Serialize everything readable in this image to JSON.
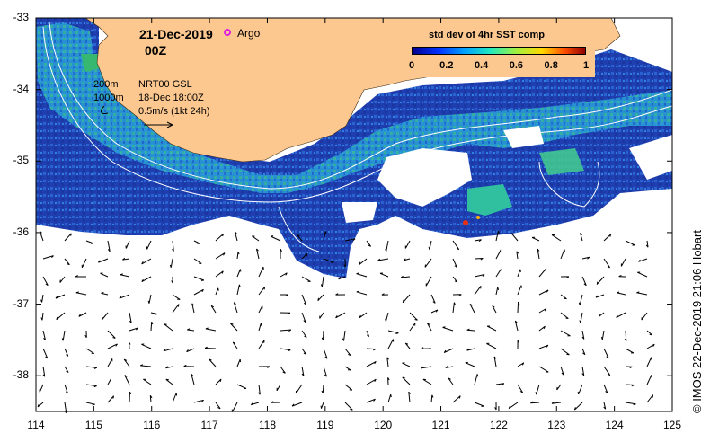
{
  "title": {
    "date": "21-Dec-2019",
    "time": "00Z"
  },
  "argo_label": "Argo",
  "info": {
    "contour_shallow": "200m",
    "contour_deep": "1000m",
    "source": "NRT00 GSL",
    "source_date": "18-Dec 18:00Z",
    "vector_scale": "0.5m/s (1kt 24h)"
  },
  "colorbar": {
    "title": "std dev of 4hr SST comp",
    "ticks": [
      "0",
      "0.2",
      "0.4",
      "0.6",
      "0.8",
      "1"
    ],
    "range": [
      0,
      1
    ]
  },
  "axes": {
    "lon_ticks": [
      "114",
      "115",
      "116",
      "117",
      "118",
      "119",
      "120",
      "121",
      "122",
      "123",
      "124",
      "125"
    ],
    "lat_ticks": [
      "-33",
      "-34",
      "-35",
      "-36",
      "-37",
      "-38"
    ],
    "lon_range": [
      114,
      125
    ],
    "lat_range": [
      -38.5,
      -33
    ]
  },
  "credit": "© IMOS 22-Dec-2019 21:06 Hobart",
  "colors": {
    "land": "#fcc890",
    "ocean_base": "#1f3fb0",
    "ocean_mid": "#2c9ee0",
    "ocean_warm": "#2ab38a",
    "argo": "#e020e0"
  }
}
